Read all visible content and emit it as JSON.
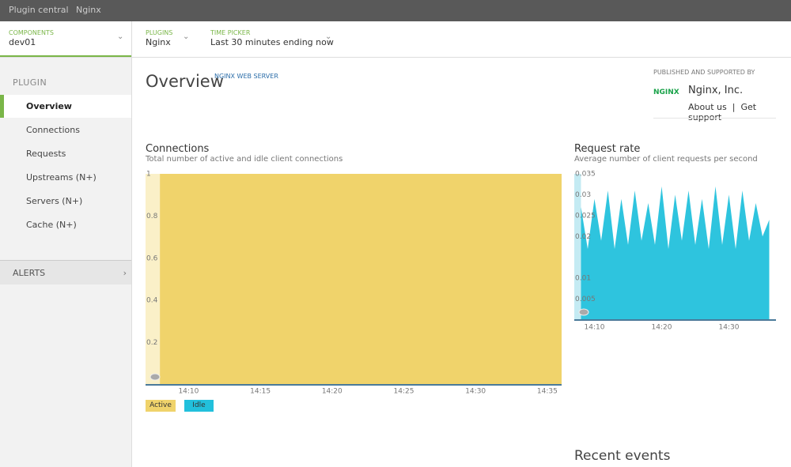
{
  "topbar": {
    "tabs": [
      "Plugin central",
      "Nginx"
    ]
  },
  "selectors": [
    {
      "label": "COMPONENTS",
      "value": "dev01"
    },
    {
      "label": "PLUGINS",
      "value": "Nginx"
    },
    {
      "label": "TIME PICKER",
      "value": "Last 30 minutes ending now"
    }
  ],
  "sidebar": {
    "heading": "PLUGIN",
    "items": [
      "Overview",
      "Connections",
      "Requests",
      "Upstreams (N+)",
      "Servers (N+)",
      "Cache (N+)"
    ],
    "alerts": "ALERTS"
  },
  "header": {
    "title": "Overview",
    "tag": "NGINX WEB SERVER"
  },
  "publisher": {
    "label": "PUBLISHED AND SUPPORTED BY",
    "logo": "NGINX",
    "name": "Nginx, Inc.",
    "links": [
      "About us",
      "Get support"
    ]
  },
  "charts": [
    {
      "type": "stacked-area",
      "title": "Connections",
      "subtitle": "Total number of active and idle client connections",
      "x": [
        "14:08",
        "14:09",
        "14:10",
        "14:11",
        "14:12",
        "14:13",
        "14:14",
        "14:15",
        "14:16",
        "14:17",
        "14:18",
        "14:19",
        "14:20",
        "14:21",
        "14:22",
        "14:23",
        "14:24",
        "14:25",
        "14:26",
        "14:27",
        "14:28",
        "14:29",
        "14:30",
        "14:31",
        "14:32",
        "14:33",
        "14:34",
        "14:35",
        "14:36"
      ],
      "series": [
        {
          "name": "Active",
          "color": "#f0d36b",
          "values": [
            1,
            1,
            1,
            1,
            1,
            1,
            1,
            1,
            1,
            1,
            1,
            1,
            1,
            1,
            1,
            1,
            1,
            1,
            1,
            1,
            1,
            1,
            1,
            1,
            1,
            1,
            1,
            1,
            1
          ]
        },
        {
          "name": "Idle",
          "color": "#22c0dc",
          "values": [
            0,
            0,
            0,
            0,
            0,
            0,
            0,
            0,
            0,
            0,
            0,
            0,
            0,
            0,
            0,
            0,
            0,
            0,
            0,
            0,
            0,
            0,
            0,
            0,
            0,
            0,
            0,
            0,
            0
          ]
        }
      ],
      "xlim": [
        "14:07",
        "14:36"
      ],
      "xticks": [
        "14:10",
        "14:15",
        "14:20",
        "14:25",
        "14:30",
        "14:35"
      ],
      "ylim": [
        0,
        1
      ],
      "yticks": [
        0.2,
        0.4,
        0.6,
        0.8,
        1
      ]
    },
    {
      "type": "area",
      "title": "Request rate",
      "subtitle": "Average number of client requests per second",
      "x": [
        "14:08",
        "14:09",
        "14:10",
        "14:11",
        "14:12",
        "14:13",
        "14:14",
        "14:15",
        "14:16",
        "14:17",
        "14:18",
        "14:19",
        "14:20",
        "14:21",
        "14:22",
        "14:23",
        "14:24",
        "14:25",
        "14:26",
        "14:27",
        "14:28",
        "14:29",
        "14:30",
        "14:31",
        "14:32",
        "14:33",
        "14:34",
        "14:35",
        "14:36"
      ],
      "series": [
        {
          "name": "Request rate",
          "color": "#2ec4de",
          "values": [
            0.027,
            0.017,
            0.029,
            0.019,
            0.031,
            0.017,
            0.029,
            0.018,
            0.031,
            0.019,
            0.028,
            0.018,
            0.032,
            0.017,
            0.03,
            0.019,
            0.031,
            0.018,
            0.029,
            0.017,
            0.032,
            0.018,
            0.03,
            0.017,
            0.031,
            0.019,
            0.028,
            0.02,
            0.024
          ]
        }
      ],
      "xlim": [
        "14:07",
        "14:37"
      ],
      "xticks": [
        "14:10",
        "14:20",
        "14:30"
      ],
      "ylim": [
        0,
        0.035
      ],
      "yticks": [
        0.005,
        0.01,
        0.02,
        0.025,
        0.03,
        0.035
      ]
    }
  ],
  "events": {
    "title": "Recent events"
  }
}
